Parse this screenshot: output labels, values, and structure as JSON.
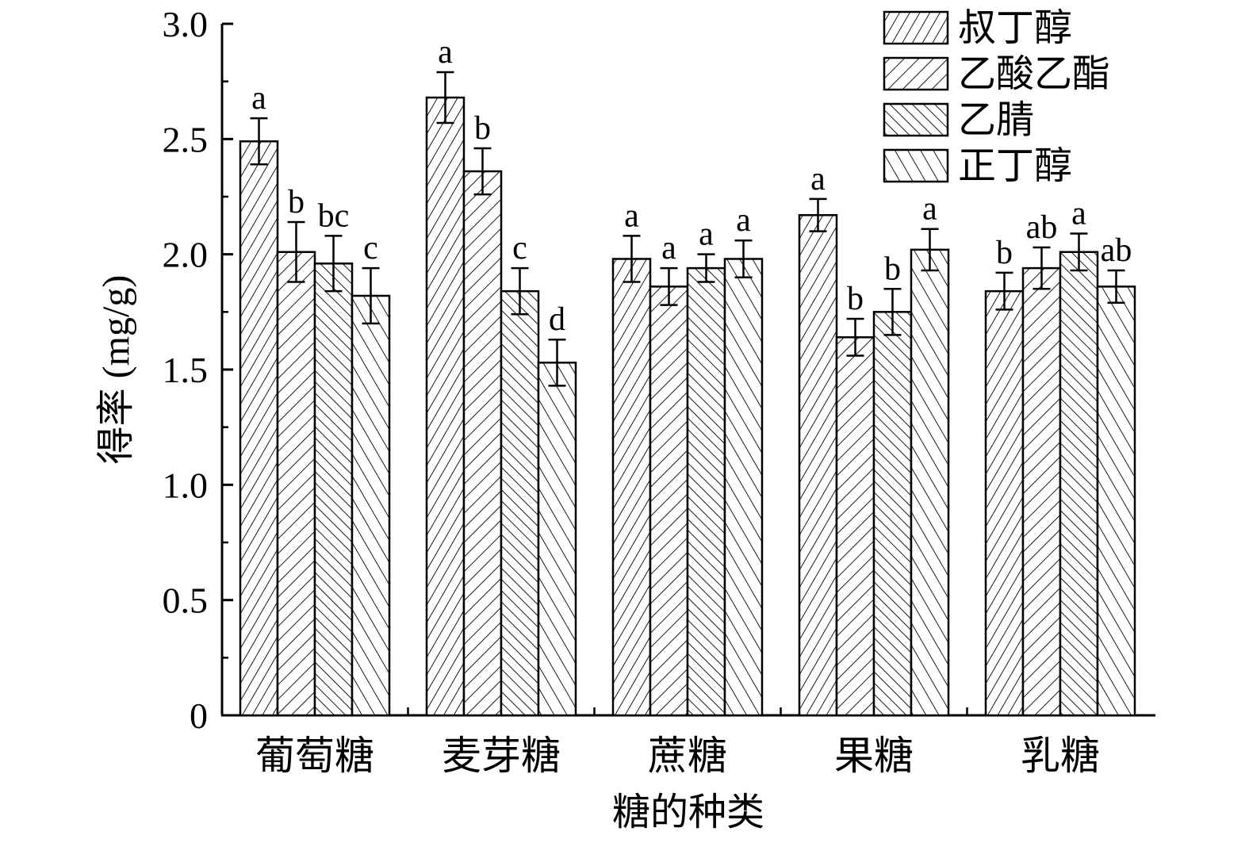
{
  "chart_data": {
    "type": "bar",
    "title": "",
    "xlabel": "糖的种类",
    "ylabel": "得率 (mg/g)",
    "ylim": [
      0,
      3.0
    ],
    "yticks": [
      "0",
      "0.5",
      "1.0",
      "1.5",
      "2.0",
      "2.5",
      "3.0"
    ],
    "categories": [
      "葡萄糖",
      "麦芽糖",
      "蔗糖",
      "果糖",
      "乳糖"
    ],
    "legend_position": "top-right",
    "series": [
      {
        "name": "叔丁醇",
        "pattern": "hatch-steep-right",
        "values": [
          2.49,
          2.68,
          1.98,
          2.17,
          1.84
        ],
        "errors": [
          0.1,
          0.11,
          0.1,
          0.07,
          0.08
        ],
        "labels": [
          "a",
          "a",
          "a",
          "a",
          "b"
        ]
      },
      {
        "name": "乙酸乙酯",
        "pattern": "hatch-right",
        "values": [
          2.01,
          2.36,
          1.86,
          1.64,
          1.94
        ],
        "errors": [
          0.13,
          0.1,
          0.08,
          0.08,
          0.09
        ],
        "labels": [
          "b",
          "b",
          "a",
          "b",
          "ab"
        ]
      },
      {
        "name": "乙腈",
        "pattern": "hatch-steep-left",
        "values": [
          1.96,
          1.84,
          1.94,
          1.75,
          2.01
        ],
        "errors": [
          0.12,
          0.1,
          0.06,
          0.1,
          0.08
        ],
        "labels": [
          "bc",
          "c",
          "a",
          "b",
          "a"
        ]
      },
      {
        "name": "正丁醇",
        "pattern": "hatch-left",
        "values": [
          1.82,
          1.53,
          1.98,
          2.02,
          1.86
        ],
        "errors": [
          0.12,
          0.1,
          0.08,
          0.09,
          0.07
        ],
        "labels": [
          "c",
          "d",
          "a",
          "a",
          "ab"
        ]
      }
    ]
  }
}
